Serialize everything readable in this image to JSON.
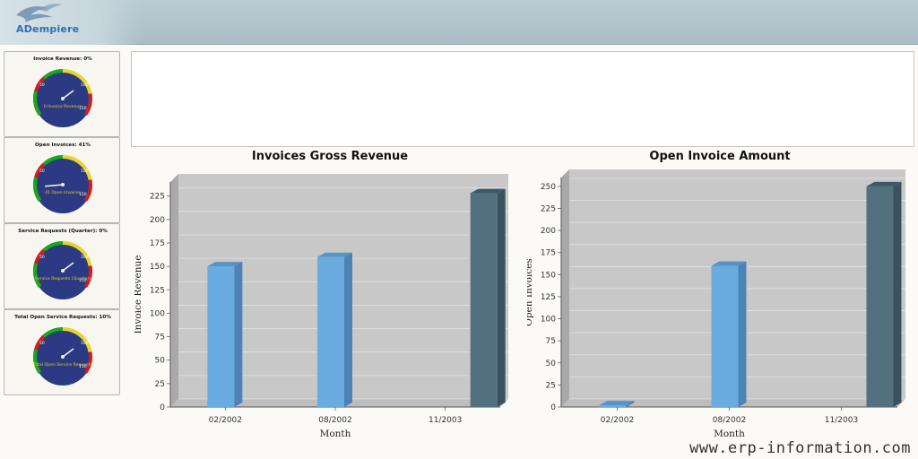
{
  "header": {
    "logo_text": "ADempiere"
  },
  "sidebar": {
    "gauges": [
      {
        "title": "Invoice Revenue: 0%",
        "caption": "0 Invoice Revenue",
        "value": 0,
        "ticks": [
          "50",
          "100",
          "150"
        ]
      },
      {
        "title": "Open Invoices: 41%",
        "caption": "41 Open Invoices",
        "value": 41,
        "ticks": [
          "50",
          "100",
          "150"
        ]
      },
      {
        "title": "Service Requests (Quarter): 0%",
        "caption": "Service Requests (Quarter)",
        "value": 0,
        "ticks": [
          "50",
          "100",
          "150"
        ]
      },
      {
        "title": "Total Open Service Requests: 10%",
        "caption": "Total Open Service Requests",
        "value": 10,
        "ticks": [
          "50",
          "100",
          "150"
        ]
      }
    ]
  },
  "colors": {
    "bar_light": "#6aabe0",
    "bar_dark": "#53707f",
    "plot_bg": "#c8c8c8",
    "gauge_face": "#2b3a82"
  },
  "chart_data": [
    {
      "type": "bar",
      "title": "Invoices Gross Revenue",
      "xlabel": "Month",
      "ylabel": "Invoice Revenue",
      "categories": [
        "02/2002",
        "08/2002",
        "11/2003"
      ],
      "values": [
        150,
        160,
        228
      ],
      "ylim": [
        0,
        240
      ],
      "yticks": [
        "0",
        "25",
        "50",
        "75",
        "100",
        "125",
        "150",
        "175",
        "200",
        "225"
      ],
      "grid": true
    },
    {
      "type": "bar",
      "title": "Open Invoice Amount",
      "xlabel": "Month",
      "ylabel": "Open Invoices",
      "categories": [
        "02/2002",
        "08/2002",
        "11/2003"
      ],
      "values": [
        2,
        160,
        250
      ],
      "ylim": [
        0,
        260
      ],
      "yticks": [
        "0",
        "25",
        "50",
        "75",
        "100",
        "125",
        "150",
        "175",
        "200",
        "225",
        "250"
      ],
      "grid": true
    }
  ],
  "watermark": "www.erp-information.com"
}
